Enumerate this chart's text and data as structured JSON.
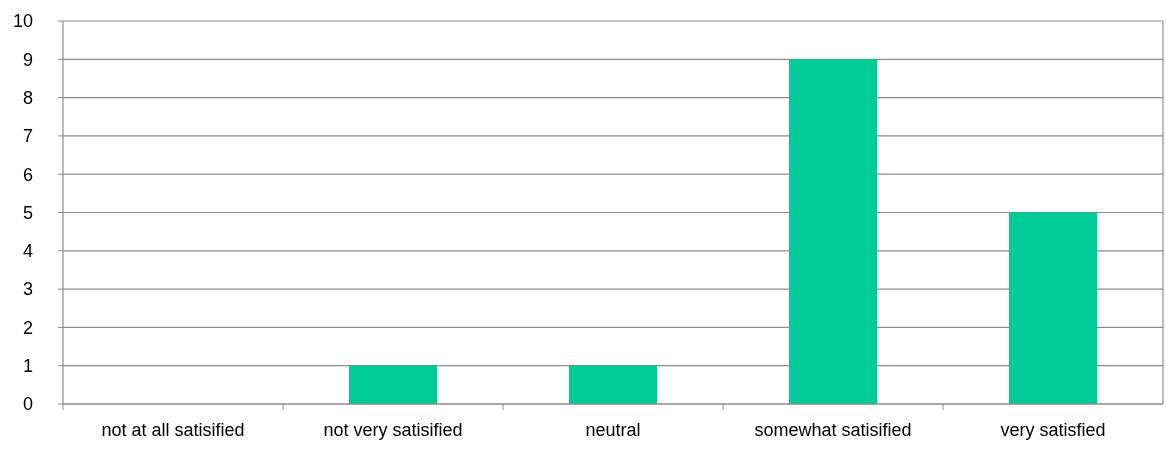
{
  "chart_data": {
    "type": "bar",
    "categories": [
      "not at all satisified",
      "not very satisified",
      "neutral",
      "somewhat satisified",
      "very satisfied"
    ],
    "values": [
      0,
      1,
      1,
      9,
      5
    ],
    "color": "#00cc99",
    "ylim": [
      0,
      10
    ],
    "yticks": [
      0,
      1,
      2,
      3,
      4,
      5,
      6,
      7,
      8,
      9,
      10
    ],
    "grid": "y"
  }
}
